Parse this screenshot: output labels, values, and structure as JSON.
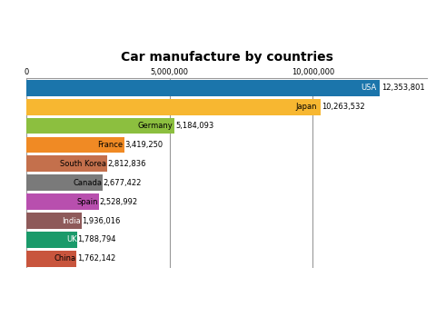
{
  "chart_data": {
    "type": "bar",
    "orientation": "horizontal",
    "title": "Car manufacture by countries",
    "categories": [
      "USA",
      "Japan",
      "Germany",
      "France",
      "South Korea",
      "Canada",
      "Spain",
      "India",
      "UK",
      "China"
    ],
    "values": [
      12353801,
      10263532,
      5184093,
      3419250,
      2812836,
      2677422,
      2528992,
      1936016,
      1788794,
      1762142
    ],
    "value_labels": [
      "12,353,801",
      "10,263,532",
      "5,184,093",
      "3,419,250",
      "2,812,836",
      "2,677,422",
      "2,528,992",
      "1,936,016",
      "1,788,794",
      "1,762,142"
    ],
    "colors": [
      "#1b75ab",
      "#f7b731",
      "#8cbf3f",
      "#f08a24",
      "#c4704c",
      "#7a7a7a",
      "#b84fae",
      "#8e5a5a",
      "#1a9a6a",
      "#c8553d"
    ],
    "xlim": [
      0,
      14000000
    ],
    "xticks": [
      0,
      {
        "value": 5000000,
        "label": "5,000,000"
      },
      {
        "value": 10000000,
        "label": "10,000,000"
      }
    ],
    "grid": true,
    "data_labels": true,
    "tick_labels": "x"
  }
}
